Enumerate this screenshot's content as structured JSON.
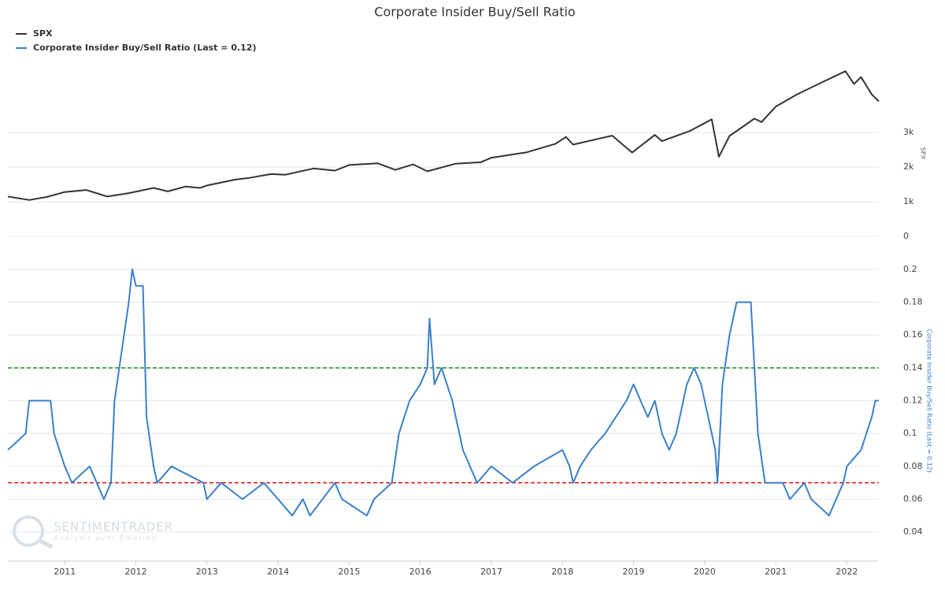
{
  "chart_data": [
    {
      "type": "line",
      "title": "Corporate Insider Buy/Sell Ratio",
      "y_label": "SPX",
      "ylim": [
        0,
        4800
      ],
      "yticks": [
        0,
        {
          "value": 1000,
          "label": "1k"
        },
        {
          "value": 2000,
          "label": "2k"
        },
        {
          "value": 3000,
          "label": "3k"
        }
      ],
      "xlim": [
        2010.2,
        2022.45
      ],
      "grid": true,
      "series": [
        {
          "name": "SPX",
          "color": "#333333",
          "x": [
            2010.2,
            2010.5,
            2010.75,
            2011.0,
            2011.3,
            2011.6,
            2011.9,
            2012.25,
            2012.45,
            2012.7,
            2012.9,
            2013.0,
            2013.4,
            2013.6,
            2013.9,
            2014.1,
            2014.5,
            2014.8,
            2015.0,
            2015.4,
            2015.65,
            2015.9,
            2016.1,
            2016.5,
            2016.85,
            2017.0,
            2017.5,
            2017.9,
            2018.05,
            2018.15,
            2018.7,
            2018.98,
            2019.3,
            2019.4,
            2019.8,
            2020.1,
            2020.2,
            2020.35,
            2020.7,
            2020.8,
            2021.0,
            2021.3,
            2021.6,
            2021.98,
            2022.1,
            2022.2,
            2022.35,
            2022.45
          ],
          "values": [
            1150,
            1050,
            1140,
            1280,
            1340,
            1150,
            1250,
            1400,
            1300,
            1440,
            1400,
            1470,
            1640,
            1690,
            1800,
            1780,
            1960,
            1900,
            2060,
            2110,
            1920,
            2080,
            1880,
            2100,
            2140,
            2270,
            2430,
            2670,
            2870,
            2650,
            2910,
            2420,
            2930,
            2750,
            3050,
            3380,
            2300,
            2900,
            3400,
            3300,
            3750,
            4100,
            4400,
            4770,
            4400,
            4600,
            4100,
            3900
          ]
        }
      ]
    },
    {
      "type": "line",
      "y_label": "Corporate Insider Buy/Sell Ratio (Last = 0.12)",
      "ylim": [
        0.03,
        0.21
      ],
      "yticks": [
        0.04,
        0.06,
        0.08,
        0.1,
        0.12,
        0.14,
        0.16,
        0.18,
        0.2
      ],
      "xlim": [
        2010.2,
        2022.45
      ],
      "xticks": [
        2011,
        2012,
        2013,
        2014,
        2015,
        2016,
        2017,
        2018,
        2019,
        2020,
        2021,
        2022
      ],
      "grid": true,
      "reference_lines": [
        {
          "value": 0.14,
          "color": "#1a8a1a"
        },
        {
          "value": 0.07,
          "color": "#dd1111"
        }
      ],
      "series": [
        {
          "name": "Corporate Insider Buy/Sell Ratio (Last = 0.12)",
          "color": "#3a80c8",
          "x": [
            2010.2,
            2010.45,
            2010.5,
            2010.8,
            2010.85,
            2011.0,
            2011.1,
            2011.35,
            2011.45,
            2011.55,
            2011.65,
            2011.7,
            2011.8,
            2011.9,
            2011.95,
            2012.0,
            2012.1,
            2012.15,
            2012.25,
            2012.3,
            2012.5,
            2012.95,
            2013.0,
            2013.2,
            2013.5,
            2013.8,
            2014.0,
            2014.2,
            2014.35,
            2014.45,
            2014.8,
            2014.9,
            2015.25,
            2015.35,
            2015.6,
            2015.7,
            2015.85,
            2016.0,
            2016.1,
            2016.13,
            2016.2,
            2016.3,
            2016.45,
            2016.6,
            2016.8,
            2017.0,
            2017.3,
            2017.6,
            2018.0,
            2018.1,
            2018.15,
            2018.25,
            2018.4,
            2018.6,
            2018.9,
            2019.0,
            2019.1,
            2019.2,
            2019.3,
            2019.4,
            2019.5,
            2019.6,
            2019.75,
            2019.85,
            2019.95,
            2020.05,
            2020.15,
            2020.18,
            2020.25,
            2020.35,
            2020.45,
            2020.65,
            2020.75,
            2020.85,
            2021.1,
            2021.2,
            2021.4,
            2021.5,
            2021.75,
            2021.85,
            2021.95,
            2022.0,
            2022.2,
            2022.35,
            2022.4,
            2022.45
          ],
          "values": [
            0.09,
            0.1,
            0.12,
            0.12,
            0.1,
            0.08,
            0.07,
            0.08,
            0.07,
            0.06,
            0.07,
            0.12,
            0.15,
            0.18,
            0.2,
            0.19,
            0.19,
            0.11,
            0.08,
            0.07,
            0.08,
            0.07,
            0.06,
            0.07,
            0.06,
            0.07,
            0.06,
            0.05,
            0.06,
            0.05,
            0.07,
            0.06,
            0.05,
            0.06,
            0.07,
            0.1,
            0.12,
            0.13,
            0.14,
            0.17,
            0.13,
            0.14,
            0.12,
            0.09,
            0.07,
            0.08,
            0.07,
            0.08,
            0.09,
            0.08,
            0.07,
            0.08,
            0.09,
            0.1,
            0.12,
            0.13,
            0.12,
            0.11,
            0.12,
            0.1,
            0.09,
            0.1,
            0.13,
            0.14,
            0.13,
            0.11,
            0.09,
            0.07,
            0.13,
            0.16,
            0.18,
            0.18,
            0.1,
            0.07,
            0.07,
            0.06,
            0.07,
            0.06,
            0.05,
            0.06,
            0.07,
            0.08,
            0.09,
            0.11,
            0.12,
            0.12
          ]
        }
      ]
    }
  ],
  "watermark": {
    "name": "SENTIMENTRADER",
    "tagline": "Analysis over Emotion"
  }
}
